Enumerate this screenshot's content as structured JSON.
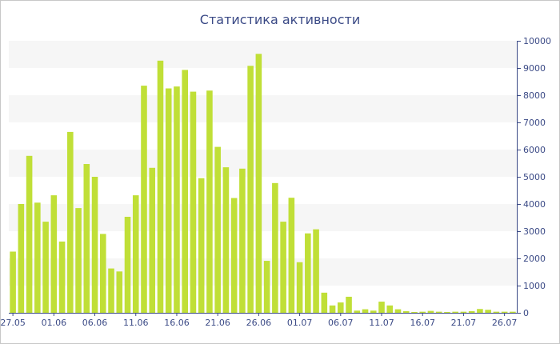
{
  "chart_data": {
    "type": "bar",
    "title": "Статистика активности",
    "xlabel": "",
    "ylabel": "",
    "ylim": [
      0,
      10000
    ],
    "y_ticks": [
      0,
      1000,
      2000,
      3000,
      4000,
      5000,
      6000,
      7000,
      8000,
      9000,
      10000
    ],
    "y_axis_side": "right",
    "grid": "alternating horizontal bands",
    "categories": [
      "27.05",
      "28.05",
      "29.05",
      "30.05",
      "31.05",
      "01.06",
      "02.06",
      "03.06",
      "04.06",
      "05.06",
      "06.06",
      "07.06",
      "08.06",
      "09.06",
      "10.06",
      "11.06",
      "12.06",
      "13.06",
      "14.06",
      "15.06",
      "16.06",
      "17.06",
      "18.06",
      "19.06",
      "20.06",
      "21.06",
      "22.06",
      "23.06",
      "24.06",
      "25.06",
      "26.06",
      "27.06",
      "28.06",
      "29.06",
      "30.06",
      "01.07",
      "02.07",
      "03.07",
      "04.07",
      "05.07",
      "06.07",
      "07.07",
      "08.07",
      "09.07",
      "10.07",
      "11.07",
      "12.07",
      "13.07",
      "14.07",
      "15.07",
      "16.07",
      "17.07",
      "18.07",
      "19.07",
      "20.07",
      "21.07",
      "22.07",
      "23.07",
      "24.07",
      "25.07",
      "26.07",
      "27.07"
    ],
    "x_tick_labels": [
      "27.05",
      "01.06",
      "06.06",
      "11.06",
      "16.06",
      "21.06",
      "26.06",
      "01.07",
      "06.07",
      "11.07",
      "16.07",
      "21.07",
      "26.07"
    ],
    "values": [
      2250,
      4000,
      5770,
      4050,
      3350,
      4320,
      2620,
      6650,
      3850,
      5470,
      5000,
      2900,
      1630,
      1520,
      3530,
      4320,
      8350,
      5330,
      9270,
      8250,
      8320,
      8930,
      8130,
      4950,
      8170,
      6100,
      5350,
      4220,
      5300,
      9080,
      9520,
      1910,
      4770,
      3350,
      4230,
      1860,
      2920,
      3070,
      740,
      270,
      380,
      590,
      80,
      130,
      80,
      410,
      270,
      130,
      60,
      30,
      40,
      70,
      40,
      30,
      40,
      40,
      60,
      140,
      110,
      40,
      40,
      40
    ],
    "bar_color": "#c0df37",
    "band_color": "#f6f6f6",
    "axis_color": "#3b4a86"
  }
}
